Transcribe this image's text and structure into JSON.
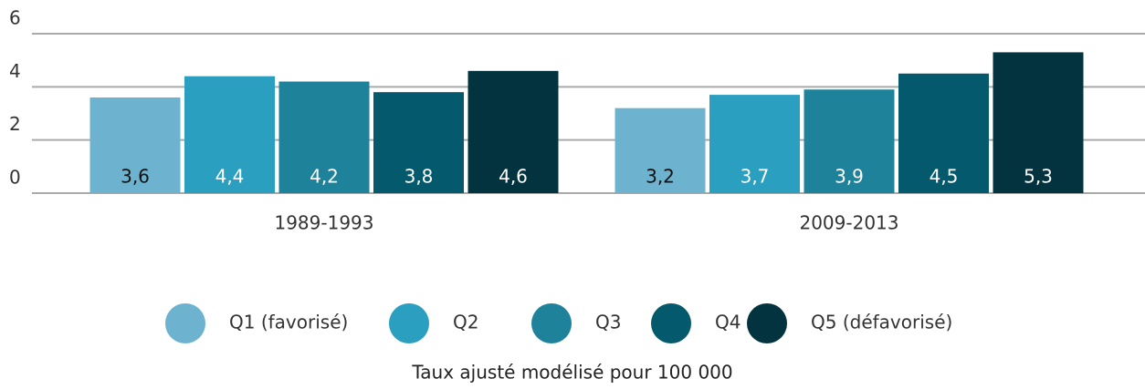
{
  "chart_data": {
    "type": "bar",
    "x_label": "Taux ajusté modélisé pour 100 000",
    "categories": [
      "1989-1993",
      "2009-2013"
    ],
    "series": [
      {
        "name": "Q1 (favorisé)",
        "color": "#6db3cf",
        "values": [
          3.6,
          3.2
        ],
        "value_labels": [
          "3,6",
          "3,2"
        ]
      },
      {
        "name": "Q2",
        "color": "#2a9fc0",
        "values": [
          4.4,
          3.7
        ],
        "value_labels": [
          "4,4",
          "3,7"
        ]
      },
      {
        "name": "Q3",
        "color": "#1e829b",
        "values": [
          4.2,
          3.9
        ],
        "value_labels": [
          "4,2",
          "3,9"
        ]
      },
      {
        "name": "Q4",
        "color": "#045a6c",
        "values": [
          3.8,
          4.5
        ],
        "value_labels": [
          "3,8",
          "4,5"
        ]
      },
      {
        "name": "Q5 (défavorisé)",
        "color": "#02333f",
        "values": [
          4.6,
          5.3
        ],
        "value_labels": [
          "4,6",
          "5,3"
        ]
      }
    ],
    "ylim": [
      0,
      6
    ],
    "yticks": [
      0,
      2,
      4,
      6
    ],
    "grid": true,
    "legend": "bottom"
  }
}
